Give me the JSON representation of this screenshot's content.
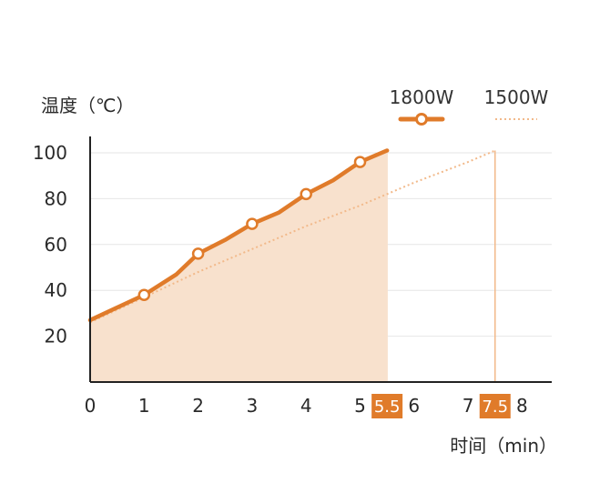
{
  "colors": {
    "series_1800": "#e07b2a",
    "series_1500": "#f2b98a",
    "fill_1800": "#f8e1cd",
    "axis": "#222222",
    "grid": "#e6e6e6",
    "highlight": "#e07b2a",
    "marker_fill": "#ffffff"
  },
  "chart_data": {
    "type": "line",
    "ylabel": "温度（℃）",
    "xlabel": "时间（min）",
    "xlim": [
      0,
      8.5
    ],
    "ylim": [
      0,
      100
    ],
    "x_ticks": [
      "0",
      "1",
      "2",
      "3",
      "4",
      "5",
      "6",
      "7",
      "8"
    ],
    "y_ticks": [
      "20",
      "40",
      "60",
      "80",
      "100"
    ],
    "highlighted_ticks": [
      {
        "x": 5.5,
        "label": "5.5"
      },
      {
        "x": 7.5,
        "label": "7.5"
      }
    ],
    "grid": true,
    "legend_position": "top-right",
    "series": [
      {
        "name": "1800W",
        "style": "solid-with-markers",
        "x": [
          0,
          1,
          1.6,
          2,
          2.5,
          3,
          3.5,
          4,
          4.5,
          5,
          5.5
        ],
        "y": [
          27,
          38,
          47,
          56,
          62,
          69,
          74,
          82,
          88,
          96,
          101
        ],
        "marker_x": [
          1,
          2,
          3,
          4,
          5
        ]
      },
      {
        "name": "1500W",
        "style": "dotted",
        "x": [
          0,
          1,
          2,
          3,
          4,
          5,
          6,
          7,
          7.5
        ],
        "y": [
          26,
          37,
          48,
          58,
          68,
          77,
          87,
          96,
          101
        ]
      }
    ]
  }
}
